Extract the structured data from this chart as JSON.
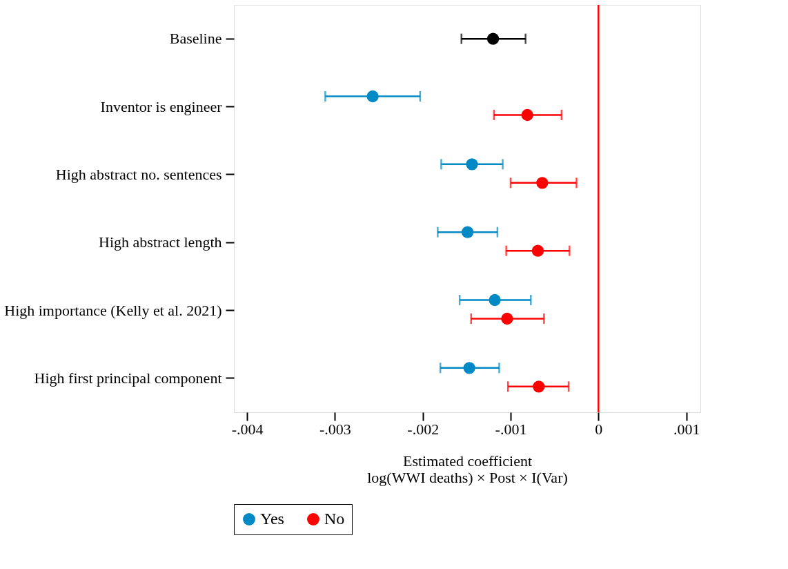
{
  "chart_data": {
    "type": "scatter",
    "orientation": "horizontal",
    "categories": [
      "Baseline",
      "Inventor is engineer",
      "High abstract no. sentences",
      "High abstract length",
      "High importance (Kelly et al. 2021)",
      "High first principal component"
    ],
    "series": [
      {
        "color": "#000000",
        "values": [
          -0.0012,
          null,
          null,
          null,
          null,
          null
        ],
        "errors": [
          [
            -0.00156,
            -0.00083
          ],
          null,
          null,
          null,
          null,
          null
        ]
      },
      {
        "name": "Yes",
        "color": "#0089c4",
        "values": [
          null,
          -0.00257,
          -0.00144,
          -0.00149,
          -0.00118,
          -0.00147
        ],
        "errors": [
          null,
          [
            -0.00311,
            -0.00203
          ],
          [
            -0.00179,
            -0.00109
          ],
          [
            -0.00183,
            -0.00115
          ],
          [
            -0.00158,
            -0.00077
          ],
          [
            -0.0018,
            -0.00113
          ]
        ]
      },
      {
        "name": "No",
        "color": "#ff0000",
        "values": [
          null,
          -0.00081,
          -0.00064,
          -0.00069,
          -0.00104,
          -0.00068
        ],
        "errors": [
          null,
          [
            -0.00119,
            -0.00042
          ],
          [
            -0.001,
            -0.00025
          ],
          [
            -0.00105,
            -0.00033
          ],
          [
            -0.00145,
            -0.00062
          ],
          [
            -0.00103,
            -0.00034
          ]
        ]
      }
    ],
    "xlim": [
      -0.00415,
      0.00116
    ],
    "xticks": [
      {
        "value": -0.004,
        "label": "-.004"
      },
      {
        "value": -0.003,
        "label": "-.003"
      },
      {
        "value": -0.002,
        "label": "-.002"
      },
      {
        "value": -0.001,
        "label": "-.001"
      },
      0,
      {
        "value": 0.001,
        "label": ".001"
      }
    ],
    "xlabel": [
      "Estimated coefficient",
      "log(WWI deaths) × Post × I(Var)"
    ],
    "ref_lines": [
      {
        "axis": "x",
        "value": 0,
        "color": "#ff0000"
      }
    ],
    "legend": "bottom",
    "grid": false,
    "marker": "circle"
  }
}
